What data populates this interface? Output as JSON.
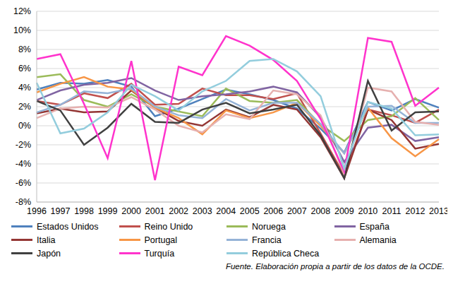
{
  "chart_data": {
    "type": "line",
    "source": "Fuente. Elaboración propia a partir de los datos de la OCDE.",
    "categories": [
      1996,
      1997,
      1998,
      1999,
      2000,
      2001,
      2002,
      2003,
      2004,
      2005,
      2006,
      2007,
      2008,
      2009,
      2010,
      2011,
      2012,
      2013
    ],
    "ylim": [
      -8,
      12
    ],
    "yticks": [
      {
        "value": -8,
        "label": "-8%"
      },
      {
        "value": -6,
        "label": "-6%"
      },
      {
        "value": -4,
        "label": "-4%"
      },
      {
        "value": -2,
        "label": "-2%"
      },
      {
        "value": 0,
        "label": "0%"
      },
      {
        "value": 2,
        "label": "2%"
      },
      {
        "value": 4,
        "label": "4%"
      },
      {
        "value": 6,
        "label": "6%"
      },
      {
        "value": 8,
        "label": "8%"
      },
      {
        "value": 10,
        "label": "10%"
      },
      {
        "value": 12,
        "label": "12%"
      }
    ],
    "grid": true,
    "legend": "bottom",
    "series": [
      {
        "name": "Estados Unidos",
        "color": "#4f81bd",
        "values": [
          3.8,
          4.5,
          4.4,
          4.8,
          4.1,
          1.0,
          1.8,
          2.8,
          3.8,
          3.3,
          2.7,
          1.8,
          -0.3,
          -2.8,
          2.5,
          1.6,
          2.8,
          1.9
        ]
      },
      {
        "name": "Reino Unido",
        "color": "#c0504d",
        "values": [
          2.6,
          2.2,
          3.4,
          2.9,
          4.4,
          2.2,
          2.3,
          3.9,
          3.2,
          3.2,
          2.8,
          3.4,
          -0.8,
          -5.2,
          1.7,
          1.1,
          0.3,
          1.7
        ]
      },
      {
        "name": "Noruega",
        "color": "#9bbb59",
        "values": [
          5.1,
          5.4,
          2.7,
          2.0,
          3.3,
          2.0,
          1.5,
          1.0,
          3.9,
          2.6,
          2.4,
          2.7,
          0.1,
          -1.6,
          0.6,
          1.0,
          2.9,
          0.6
        ]
      },
      {
        "name": "España",
        "color": "#8064a2",
        "values": [
          2.7,
          3.7,
          4.3,
          4.5,
          5.0,
          3.7,
          2.7,
          3.1,
          3.3,
          3.6,
          4.1,
          3.5,
          0.9,
          -3.8,
          -0.2,
          0.1,
          -1.6,
          -1.2
        ]
      },
      {
        "name": "Italia",
        "color": "#943634",
        "values": [
          1.3,
          1.8,
          1.4,
          1.5,
          3.7,
          1.9,
          0.5,
          0.0,
          1.7,
          0.9,
          2.2,
          1.7,
          -1.2,
          -5.5,
          1.7,
          0.6,
          -2.4,
          -1.9
        ]
      },
      {
        "name": "Portugal",
        "color": "#f79646",
        "values": [
          3.5,
          4.4,
          5.1,
          4.1,
          3.8,
          1.9,
          0.8,
          -0.9,
          1.6,
          0.8,
          1.4,
          2.4,
          0.0,
          -2.9,
          1.9,
          -1.3,
          -3.2,
          -1.4
        ]
      },
      {
        "name": "Francia",
        "color": "#95b3d7",
        "values": [
          1.4,
          2.2,
          3.6,
          3.4,
          3.9,
          2.0,
          1.1,
          0.8,
          2.8,
          1.6,
          2.4,
          2.4,
          0.2,
          -2.9,
          2.0,
          2.1,
          0.3,
          0.3
        ]
      },
      {
        "name": "Alemania",
        "color": "#e6b0af",
        "values": [
          0.8,
          1.8,
          2.0,
          1.9,
          3.0,
          1.7,
          0.0,
          -0.7,
          1.2,
          0.7,
          3.7,
          3.3,
          1.1,
          -5.1,
          4.0,
          3.6,
          0.4,
          0.1
        ]
      },
      {
        "name": "Japón",
        "color": "#404040",
        "values": [
          2.6,
          1.6,
          -2.0,
          -0.2,
          2.3,
          0.4,
          0.3,
          1.7,
          2.4,
          1.3,
          1.7,
          2.2,
          -1.0,
          -5.5,
          4.7,
          -0.5,
          1.4,
          1.5
        ]
      },
      {
        "name": "Turquía",
        "color": "#ff33cc",
        "values": [
          7.0,
          7.5,
          2.3,
          -3.4,
          6.8,
          -5.7,
          6.2,
          5.3,
          9.4,
          8.4,
          6.9,
          4.7,
          0.7,
          -4.8,
          9.2,
          8.8,
          2.1,
          4.0
        ]
      },
      {
        "name": "República Checa",
        "color": "#93cddd",
        "values": [
          4.5,
          -0.8,
          -0.3,
          1.4,
          4.3,
          3.1,
          1.6,
          3.6,
          4.7,
          6.8,
          7.0,
          5.7,
          3.1,
          -4.5,
          2.5,
          1.8,
          -1.0,
          -0.9
        ]
      }
    ]
  }
}
